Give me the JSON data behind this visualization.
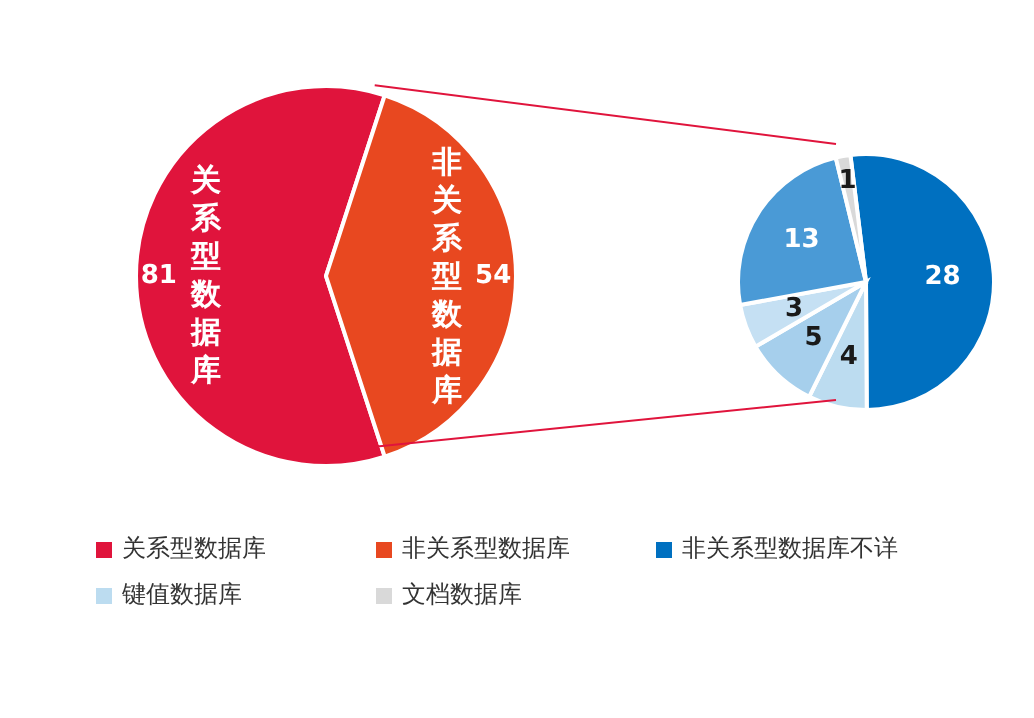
{
  "chart_data": [
    {
      "type": "pie",
      "categories": [
        "关系型数据库",
        "非关系型数据库"
      ],
      "values": [
        81,
        54
      ],
      "colors": [
        "#e0143c",
        "#e84820"
      ],
      "data_labels": true,
      "legend": "bottom"
    },
    {
      "type": "pie",
      "categories": [
        "非关系型数据库不详",
        "键值数据库",
        null,
        null,
        null,
        "文档数据库"
      ],
      "values": [
        28,
        4,
        5,
        3,
        13,
        1
      ],
      "colors": [
        "#0070c0",
        "#bcdcf0",
        "#a6cfec",
        "#c5e0f3",
        "#4a9ad6",
        "#d9d9d9"
      ],
      "data_labels": true,
      "legend": "bottom"
    }
  ]
}
